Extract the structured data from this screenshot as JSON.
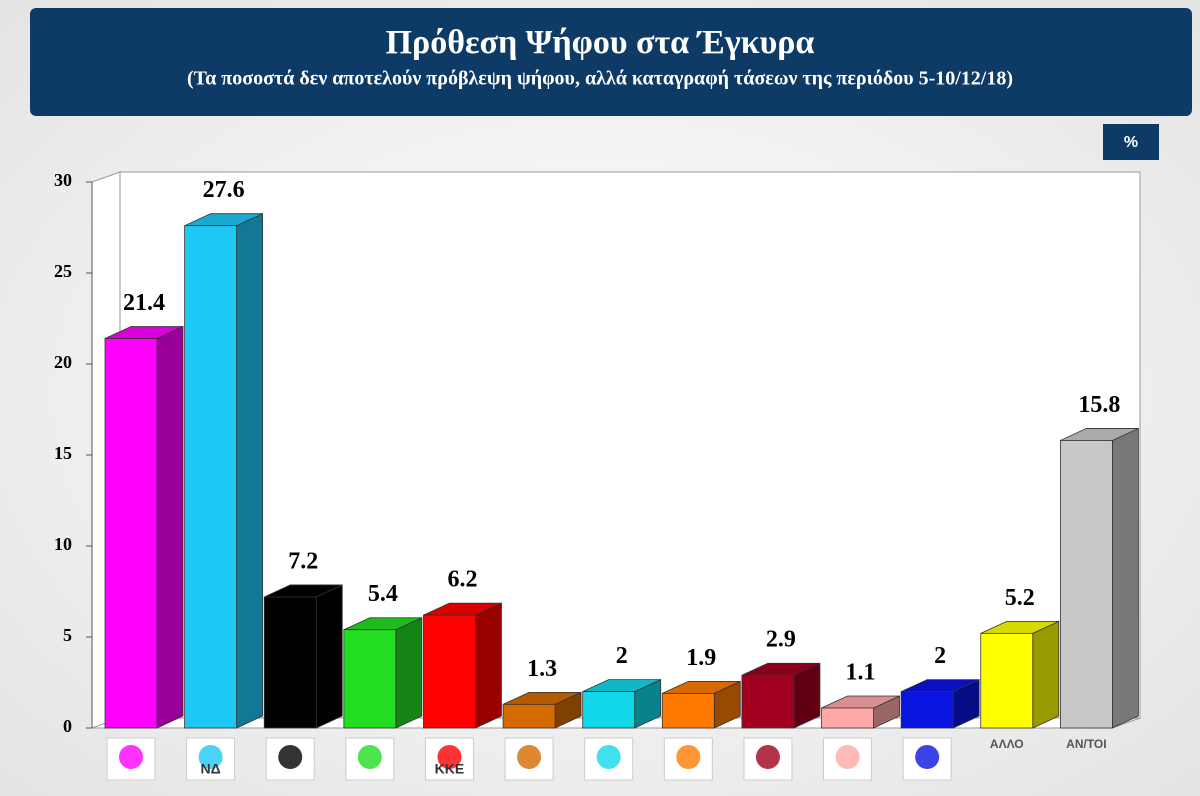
{
  "chart_data": {
    "type": "bar3d",
    "title": "Πρόθεση Ψήφου στα Έγκυρα",
    "subtitle": "(Τα ποσοστά δεν αποτελούν πρόβλεψη ψήφου, αλλά καταγραφή τάσεων  της περιόδου 5-10/12/18)",
    "unit": "%",
    "categories": [
      null,
      "ΝΔ",
      null,
      null,
      "ΚΚΕ",
      null,
      null,
      null,
      null,
      null,
      null,
      "ΑΛΛΟ",
      "ΑΝ/ΤΟΙ"
    ],
    "values": [
      21.4,
      27.6,
      7.2,
      5.4,
      6.2,
      1.3,
      2,
      1.9,
      2.9,
      1.1,
      2,
      5.2,
      15.8
    ],
    "colors": [
      "#ff00ff",
      "#1ec8f5",
      "#000000",
      "#22dd22",
      "#ff0000",
      "#d46a00",
      "#10d8e8",
      "#ff7a00",
      "#a0001e",
      "#ffa8a8",
      "#0a14e0",
      "#ffff00",
      "#c8c8c8"
    ],
    "ylim": [
      0,
      30
    ],
    "yticks": [
      0,
      5,
      10,
      15,
      20,
      25,
      30
    ]
  }
}
